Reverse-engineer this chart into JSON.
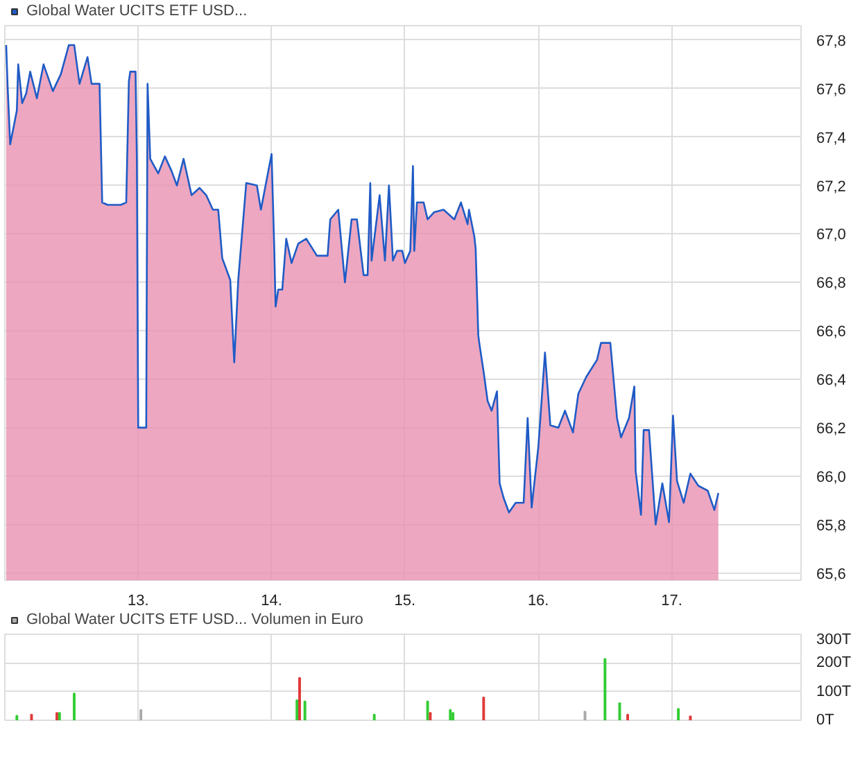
{
  "chart_data": [
    {
      "type": "area",
      "legend": "top left",
      "grid": true,
      "xlim": [
        12.0,
        17.97
      ],
      "ylim": [
        65.57,
        67.86
      ],
      "xticks": [
        {
          "value": 13,
          "label": "13."
        },
        {
          "value": 14,
          "label": "14."
        },
        {
          "value": 15,
          "label": "15."
        },
        {
          "value": 16,
          "label": "16."
        },
        {
          "value": 17,
          "label": "17."
        }
      ],
      "yticks": [
        {
          "value": 65.6,
          "label": "65,6"
        },
        {
          "value": 65.8,
          "label": "65,8"
        },
        {
          "value": 66.0,
          "label": "66,0"
        },
        {
          "value": 66.2,
          "label": "66,2"
        },
        {
          "value": 66.4,
          "label": "66,4"
        },
        {
          "value": 66.6,
          "label": "66,6"
        },
        {
          "value": 66.8,
          "label": "66,8"
        },
        {
          "value": 67.0,
          "label": "67,0"
        },
        {
          "value": 67.2,
          "label": "67,2"
        },
        {
          "value": 67.4,
          "label": "67,4"
        },
        {
          "value": 67.6,
          "label": "67,6"
        },
        {
          "value": 67.8,
          "label": "67,8"
        }
      ],
      "series": [
        {
          "color": "#e991b0",
          "x": [
            12.01,
            12.02,
            12.04,
            12.09,
            12.1,
            12.13,
            12.16,
            12.19,
            12.24,
            12.29,
            12.36,
            12.42,
            12.48,
            12.52,
            12.56,
            12.62,
            12.65,
            12.71,
            12.73,
            12.77,
            12.87,
            12.91,
            12.93,
            12.94,
            12.98,
            12.99,
            13.0,
            13.06,
            13.07,
            13.09,
            13.15,
            13.2,
            13.25,
            13.29,
            13.34,
            13.4,
            13.46,
            13.51,
            13.56,
            13.6,
            13.63,
            13.69,
            13.72,
            13.75,
            13.81,
            13.89,
            13.92,
            14.0,
            14.02,
            14.03,
            14.05,
            14.08,
            14.11,
            14.15,
            14.2,
            14.26,
            14.34,
            14.42,
            14.44,
            14.5,
            14.55,
            14.6,
            14.64,
            14.69,
            14.72,
            14.74,
            14.75,
            14.81,
            14.85,
            14.88,
            14.91,
            14.94,
            14.98,
            15.0,
            15.04,
            15.06,
            15.07,
            15.09,
            15.14,
            15.17,
            15.22,
            15.29,
            15.37,
            15.42,
            15.47,
            15.48,
            15.52,
            15.53,
            15.55,
            15.56,
            15.59,
            15.62,
            15.65,
            15.69,
            15.71,
            15.74,
            15.78,
            15.83,
            15.89,
            15.92,
            15.95,
            16.0,
            16.05,
            16.09,
            16.15,
            16.2,
            16.26,
            16.3,
            16.36,
            16.44,
            16.47,
            16.54,
            16.59,
            16.62,
            16.68,
            16.72,
            16.73,
            16.77,
            16.79,
            16.83,
            16.88,
            16.93,
            16.98,
            17.01,
            17.04,
            17.09,
            17.14,
            17.2,
            17.27,
            17.32,
            17.35
          ],
          "values": [
            67.78,
            67.62,
            67.37,
            67.51,
            67.7,
            67.54,
            67.58,
            67.67,
            67.56,
            67.7,
            67.59,
            67.66,
            67.78,
            67.78,
            67.62,
            67.73,
            67.62,
            67.62,
            67.13,
            67.12,
            67.12,
            67.13,
            67.63,
            67.67,
            67.67,
            67.3,
            66.2,
            66.2,
            67.62,
            67.31,
            67.25,
            67.32,
            67.26,
            67.2,
            67.31,
            67.16,
            67.19,
            67.16,
            67.1,
            67.1,
            66.9,
            66.81,
            66.47,
            66.81,
            67.21,
            67.2,
            67.1,
            67.33,
            66.94,
            66.7,
            66.77,
            66.77,
            66.98,
            66.88,
            66.96,
            66.98,
            66.91,
            66.91,
            67.06,
            67.1,
            66.8,
            67.06,
            67.06,
            66.83,
            66.83,
            67.21,
            66.89,
            67.16,
            66.89,
            67.2,
            66.89,
            66.93,
            66.93,
            66.88,
            66.93,
            67.28,
            66.93,
            67.13,
            67.13,
            67.06,
            67.09,
            67.1,
            67.06,
            67.13,
            67.04,
            67.1,
            66.99,
            66.94,
            66.58,
            66.54,
            66.43,
            66.31,
            66.27,
            66.35,
            65.97,
            65.91,
            65.85,
            65.89,
            65.89,
            66.24,
            65.87,
            66.12,
            66.51,
            66.21,
            66.2,
            66.27,
            66.18,
            66.34,
            66.41,
            66.48,
            66.55,
            66.55,
            66.24,
            66.16,
            66.24,
            66.37,
            66.02,
            65.84,
            66.19,
            66.19,
            65.8,
            65.97,
            65.81,
            66.25,
            65.98,
            65.89,
            66.01,
            65.96,
            65.94,
            65.86,
            65.93
          ]
        },
        {
          "type": "line",
          "name": "Global Water UCITS ETF USD...",
          "color": "#1f5bc6",
          "x": [
            12.01,
            12.02,
            12.04,
            12.09,
            12.1,
            12.13,
            12.16,
            12.19,
            12.24,
            12.29,
            12.36,
            12.42,
            12.48,
            12.52,
            12.56,
            12.62,
            12.65,
            12.71,
            12.73,
            12.77,
            12.87,
            12.91,
            12.93,
            12.94,
            12.98,
            12.99,
            13.0,
            13.06,
            13.07,
            13.09,
            13.15,
            13.2,
            13.25,
            13.29,
            13.34,
            13.4,
            13.46,
            13.51,
            13.56,
            13.6,
            13.63,
            13.69,
            13.72,
            13.75,
            13.81,
            13.89,
            13.92,
            14.0,
            14.02,
            14.03,
            14.05,
            14.08,
            14.11,
            14.15,
            14.2,
            14.26,
            14.34,
            14.42,
            14.44,
            14.5,
            14.55,
            14.6,
            14.64,
            14.69,
            14.72,
            14.74,
            14.75,
            14.81,
            14.85,
            14.88,
            14.91,
            14.94,
            14.98,
            15.0,
            15.04,
            15.06,
            15.07,
            15.09,
            15.14,
            15.17,
            15.22,
            15.29,
            15.37,
            15.42,
            15.47,
            15.48,
            15.52,
            15.53,
            15.55,
            15.56,
            15.59,
            15.62,
            15.65,
            15.69,
            15.71,
            15.74,
            15.78,
            15.83,
            15.89,
            15.92,
            15.95,
            16.0,
            16.05,
            16.09,
            16.15,
            16.2,
            16.26,
            16.3,
            16.36,
            16.44,
            16.47,
            16.54,
            16.59,
            16.62,
            16.68,
            16.72,
            16.73,
            16.77,
            16.79,
            16.83,
            16.88,
            16.93,
            16.98,
            17.01,
            17.04,
            17.09,
            17.14,
            17.2,
            17.27,
            17.32,
            17.35
          ],
          "values": [
            67.78,
            67.62,
            67.37,
            67.51,
            67.7,
            67.54,
            67.58,
            67.67,
            67.56,
            67.7,
            67.59,
            67.66,
            67.78,
            67.78,
            67.62,
            67.73,
            67.62,
            67.62,
            67.13,
            67.12,
            67.12,
            67.13,
            67.63,
            67.67,
            67.67,
            67.3,
            66.2,
            66.2,
            67.62,
            67.31,
            67.25,
            67.32,
            67.26,
            67.2,
            67.31,
            67.16,
            67.19,
            67.16,
            67.1,
            67.1,
            66.9,
            66.81,
            66.47,
            66.81,
            67.21,
            67.2,
            67.1,
            67.33,
            66.94,
            66.7,
            66.77,
            66.77,
            66.98,
            66.88,
            66.96,
            66.98,
            66.91,
            66.91,
            67.06,
            67.1,
            66.8,
            67.06,
            67.06,
            66.83,
            66.83,
            67.21,
            66.89,
            67.16,
            66.89,
            67.2,
            66.89,
            66.93,
            66.93,
            66.88,
            66.93,
            67.28,
            66.93,
            67.13,
            67.13,
            67.06,
            67.09,
            67.1,
            67.06,
            67.13,
            67.04,
            67.1,
            66.99,
            66.94,
            66.58,
            66.54,
            66.43,
            66.31,
            66.27,
            66.35,
            65.97,
            65.91,
            65.85,
            65.89,
            65.89,
            66.24,
            65.87,
            66.12,
            66.51,
            66.21,
            66.2,
            66.27,
            66.18,
            66.34,
            66.41,
            66.48,
            66.55,
            66.55,
            66.24,
            66.16,
            66.24,
            66.37,
            66.02,
            65.84,
            66.19,
            66.19,
            65.8,
            65.97,
            65.81,
            66.25,
            65.98,
            65.89,
            66.01,
            65.96,
            65.94,
            65.86,
            65.93
          ]
        }
      ]
    },
    {
      "type": "bar",
      "legend": "top left",
      "grid": true,
      "xlim": [
        12.0,
        17.97
      ],
      "ylim": [
        0,
        300
      ],
      "tick_labels": "y",
      "yticks": [
        {
          "value": 0,
          "label": "0T"
        },
        {
          "value": 100,
          "label": "100T"
        },
        {
          "value": 200,
          "label": "200T"
        },
        {
          "value": 300,
          "label": "300T"
        }
      ],
      "series": [
        {
          "name": "Global Water UCITS ETF USD... Volumen in Euro",
          "color": "#b0b0b0",
          "x": [
            12.09,
            12.2,
            12.39,
            12.41,
            12.52,
            13.02,
            14.19,
            14.21,
            14.25,
            14.77,
            15.17,
            15.19,
            15.34,
            15.36,
            15.59,
            16.35,
            16.5,
            16.61,
            16.67,
            17.05,
            17.14
          ],
          "values": [
            16,
            20,
            26,
            26,
            94,
            36,
            70,
            148,
            66,
            20,
            66,
            26,
            36,
            26,
            80,
            30,
            214,
            60,
            20,
            40,
            14
          ],
          "colors": [
            "#33cc33",
            "#e03a3a",
            "#e03a3a",
            "#33cc33",
            "#33cc33",
            "#aaaaaa",
            "#33cc33",
            "#e03a3a",
            "#33cc33",
            "#33cc33",
            "#33cc33",
            "#e03a3a",
            "#33cc33",
            "#33cc33",
            "#e03a3a",
            "#aaaaaa",
            "#33cc33",
            "#33cc33",
            "#e03a3a",
            "#33cc33",
            "#e03a3a"
          ]
        }
      ]
    }
  ]
}
